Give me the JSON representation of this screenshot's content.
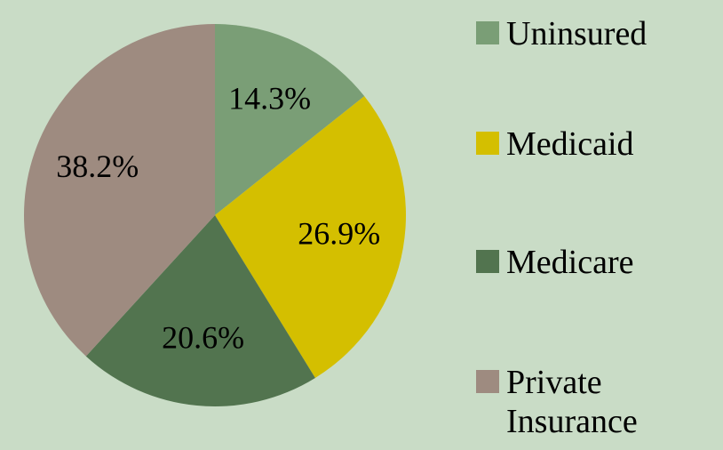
{
  "chart_data": {
    "type": "pie",
    "categories": [
      "Uninsured",
      "Medicaid",
      "Medicare",
      "Private Insurance"
    ],
    "values": [
      14.3,
      26.9,
      20.6,
      38.2
    ],
    "value_labels": [
      "14.3%",
      "26.9%",
      "20.6%",
      "38.2%"
    ],
    "colors": [
      "#7a9e76",
      "#d4bf00",
      "#52744f",
      "#9e8b80"
    ],
    "legend": "right"
  }
}
